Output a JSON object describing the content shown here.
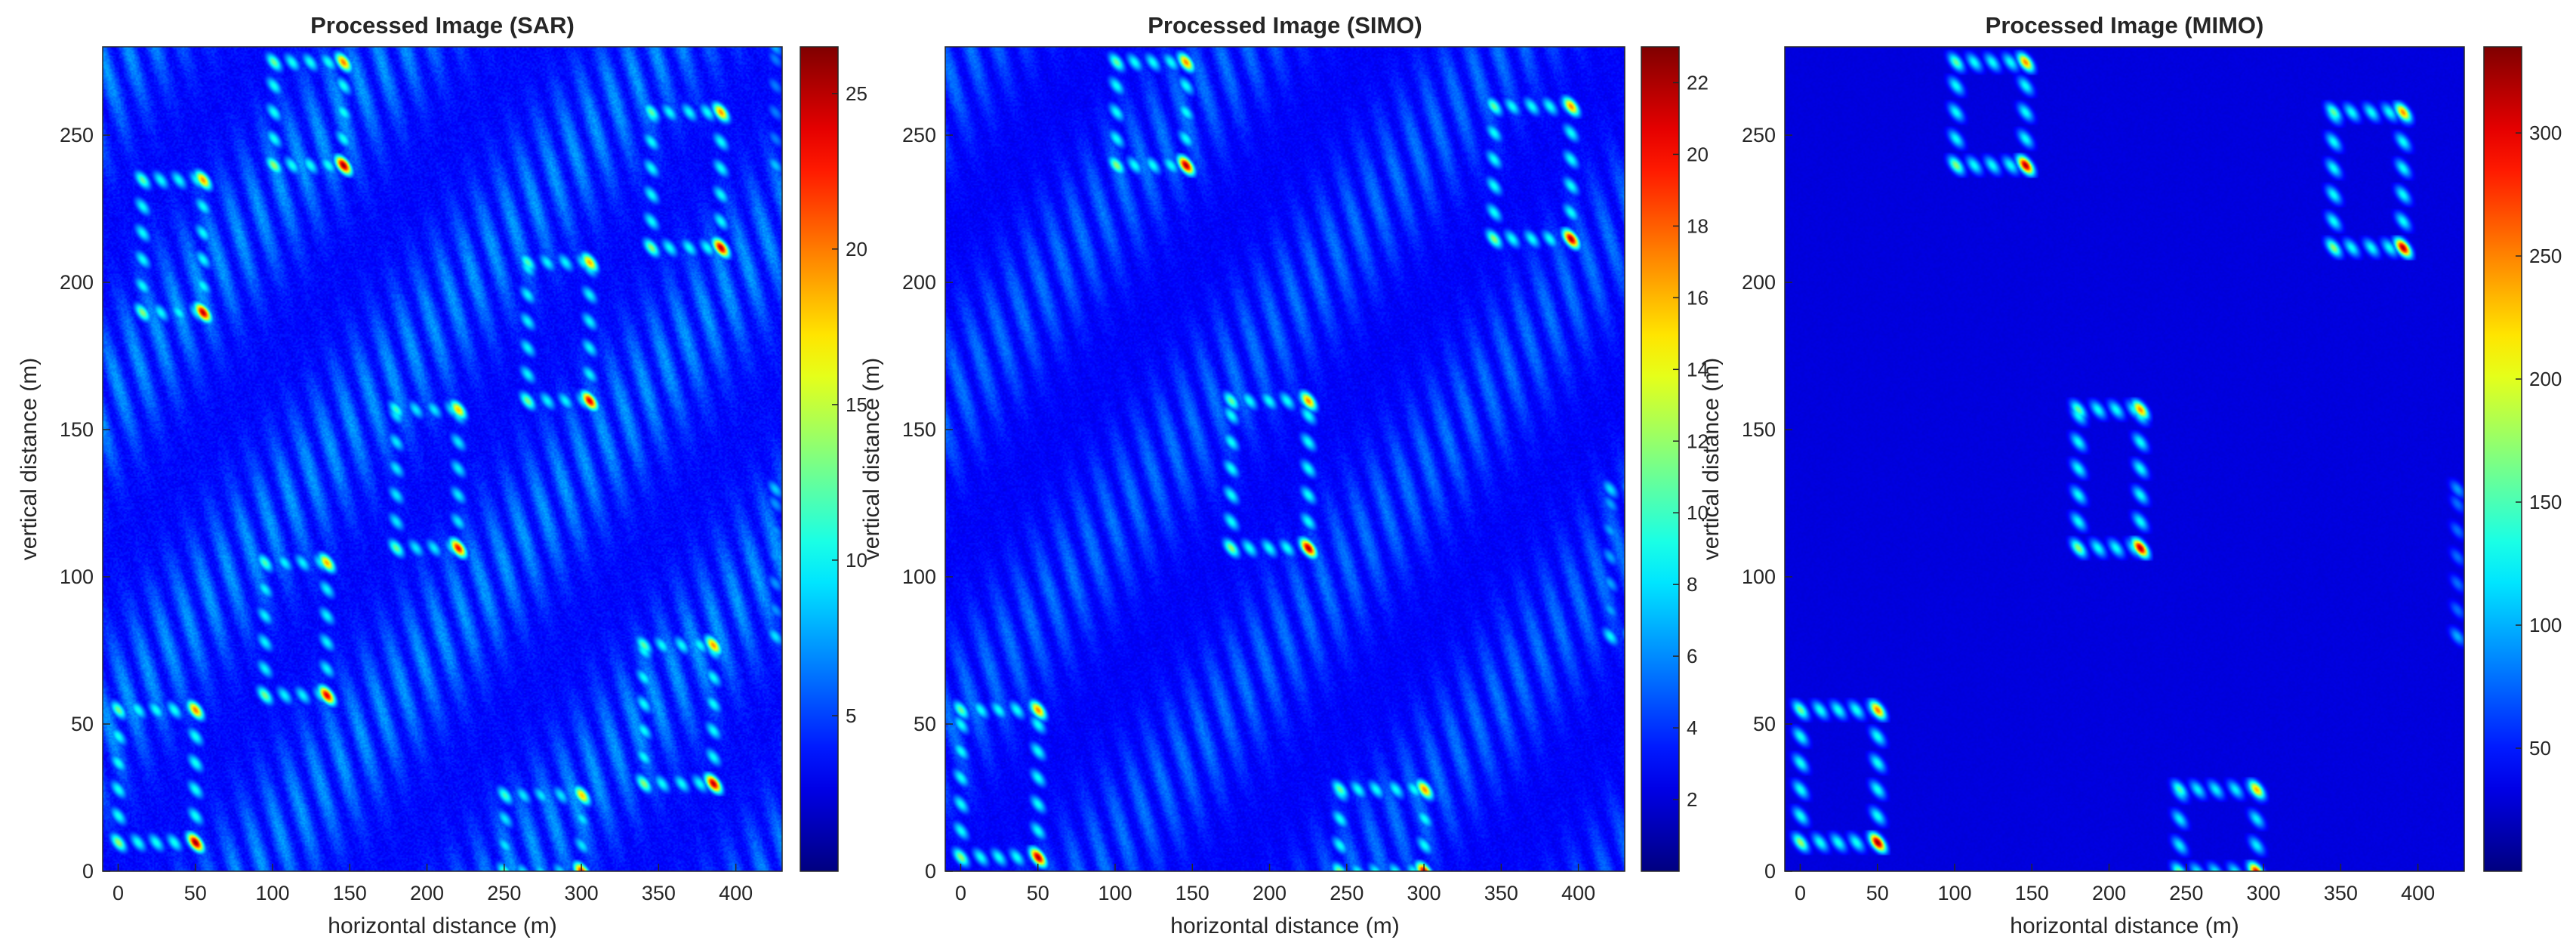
{
  "chart_data": [
    {
      "type": "heatmap",
      "title": "Processed Image (SAR)",
      "xlabel": "horizontal distance (m)",
      "ylabel": "vertical distance (m)",
      "xlim": [
        -10,
        430
      ],
      "ylim": [
        0,
        280
      ],
      "xticks": [
        0,
        50,
        100,
        150,
        200,
        250,
        300,
        350,
        400
      ],
      "yticks": [
        0,
        50,
        100,
        150,
        200,
        250
      ],
      "colorbar": {
        "colormap": "jet",
        "range": [
          0,
          26.5
        ],
        "ticks": [
          5,
          10,
          15,
          20,
          25
        ]
      },
      "background_level": 0.06,
      "diagonal_band_level": 0.16,
      "targets": [
        {
          "x": [
            0,
            50
          ],
          "y": [
            10,
            55
          ],
          "peak": 26
        },
        {
          "x": [
            95,
            135
          ],
          "y": [
            60,
            105
          ],
          "peak": 24
        },
        {
          "x": [
            180,
            220
          ],
          "y": [
            110,
            157
          ],
          "peak": 23
        },
        {
          "x": [
            265,
            305
          ],
          "y": [
            160,
            207
          ],
          "peak": 24
        },
        {
          "x": [
            15,
            55
          ],
          "y": [
            190,
            235
          ],
          "peak": 25
        },
        {
          "x": [
            100,
            145
          ],
          "y": [
            240,
            275
          ],
          "peak": 26
        },
        {
          "x": [
            345,
            390
          ],
          "y": [
            212,
            258
          ],
          "peak": 25
        },
        {
          "x": [
            340,
            385
          ],
          "y": [
            30,
            77
          ],
          "peak": 25
        },
        {
          "x": [
            250,
            300
          ],
          "y": [
            0,
            26
          ],
          "peak": 23
        },
        {
          "x": [
            425,
            440
          ],
          "y": [
            80,
            130
          ],
          "peak": 16
        },
        {
          "x": [
            425,
            440
          ],
          "y": [
            240,
            280
          ],
          "peak": 14
        }
      ]
    },
    {
      "type": "heatmap",
      "title": "Processed Image (SIMO)",
      "xlabel": "horizontal distance (m)",
      "ylabel": "vertical distance (m)",
      "xlim": [
        -10,
        430
      ],
      "ylim": [
        0,
        280
      ],
      "xticks": [
        0,
        50,
        100,
        150,
        200,
        250,
        300,
        350,
        400
      ],
      "yticks": [
        0,
        50,
        100,
        150,
        200,
        250
      ],
      "colorbar": {
        "colormap": "jet",
        "range": [
          0,
          23
        ],
        "ticks": [
          2,
          4,
          6,
          8,
          10,
          12,
          14,
          16,
          18,
          20,
          22
        ]
      },
      "background_level": 0.05,
      "diagonal_band_level": 0.13,
      "targets": [
        {
          "x": [
            0,
            50
          ],
          "y": [
            5,
            55
          ],
          "peak": 22
        },
        {
          "x": [
            100,
            145
          ],
          "y": [
            240,
            275
          ],
          "peak": 22
        },
        {
          "x": [
            175,
            225
          ],
          "y": [
            110,
            160
          ],
          "peak": 22
        },
        {
          "x": [
            345,
            395
          ],
          "y": [
            215,
            260
          ],
          "peak": 22
        },
        {
          "x": [
            245,
            300
          ],
          "y": [
            0,
            28
          ],
          "peak": 22
        },
        {
          "x": [
            420,
            440
          ],
          "y": [
            80,
            130
          ],
          "peak": 15
        }
      ]
    },
    {
      "type": "heatmap",
      "title": "Processed Image (MIMO)",
      "xlabel": "horizontal distance (m)",
      "ylabel": "vertical distance (m)",
      "xlim": [
        -10,
        430
      ],
      "ylim": [
        0,
        280
      ],
      "xticks": [
        0,
        50,
        100,
        150,
        200,
        250,
        300,
        350,
        400
      ],
      "yticks": [
        0,
        50,
        100,
        150,
        200,
        250
      ],
      "colorbar": {
        "colormap": "jet",
        "range": [
          0,
          335
        ],
        "ticks": [
          50,
          100,
          150,
          200,
          250,
          300
        ]
      },
      "background_level": 0.015,
      "diagonal_band_level": 0.0,
      "targets": [
        {
          "x": [
            0,
            50
          ],
          "y": [
            10,
            55
          ],
          "peak": 330
        },
        {
          "x": [
            100,
            145
          ],
          "y": [
            240,
            275
          ],
          "peak": 320
        },
        {
          "x": [
            180,
            220
          ],
          "y": [
            110,
            157
          ],
          "peak": 320
        },
        {
          "x": [
            345,
            390
          ],
          "y": [
            212,
            258
          ],
          "peak": 320
        },
        {
          "x": [
            245,
            295
          ],
          "y": [
            0,
            28
          ],
          "peak": 300
        },
        {
          "x": [
            425,
            440
          ],
          "y": [
            80,
            130
          ],
          "peak": 160
        }
      ]
    }
  ]
}
